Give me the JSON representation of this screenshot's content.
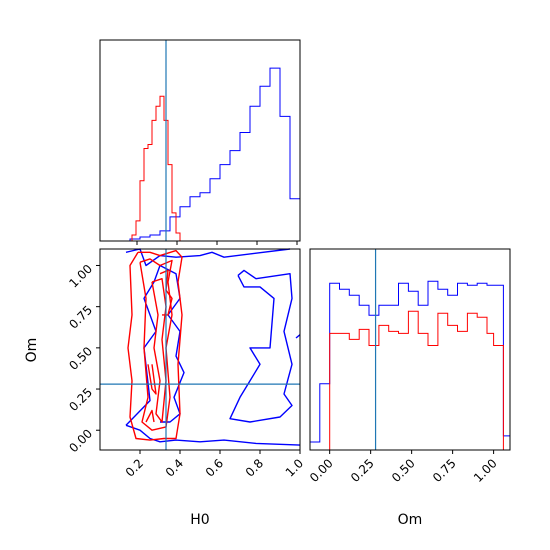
{
  "chart_data": {
    "type": "corner",
    "parameters": [
      "H0",
      "Om"
    ],
    "truth": {
      "H0": 0.33,
      "Om": 0.28
    },
    "truth_color": "#1f77b4",
    "series_colors": {
      "blue": "#0000ff",
      "red": "#ff0000"
    },
    "x_ticks": {
      "H0": [
        "0.2",
        "0.4",
        "0.6",
        "0.8",
        "1.0"
      ],
      "Om": [
        "0.00",
        "0.25",
        "0.50",
        "0.75",
        "1.00"
      ]
    },
    "y_ticks": {
      "Om": [
        "0.00",
        "0.25",
        "0.50",
        "0.75",
        "1.00"
      ]
    },
    "axis_ranges": {
      "H0": [
        0.0,
        1.0
      ],
      "Om": [
        -0.12,
        1.1
      ]
    },
    "x_labels": {
      "H0": "H0",
      "Om": "Om"
    },
    "y_labels": {
      "Om": "Om"
    },
    "hist_H0": {
      "bin_edges": [
        0.15,
        0.2,
        0.25,
        0.3,
        0.35,
        0.4,
        0.45,
        0.5,
        0.55,
        0.6,
        0.65,
        0.7,
        0.75,
        0.8,
        0.85,
        0.9,
        0.95,
        1.0
      ],
      "blue": [
        0.01,
        0.02,
        0.03,
        0.05,
        0.12,
        0.17,
        0.22,
        0.24,
        0.31,
        0.38,
        0.45,
        0.54,
        0.67,
        0.77,
        0.86,
        0.62,
        0.21
      ],
      "red_bin_edges": [
        0.16,
        0.18,
        0.2,
        0.22,
        0.24,
        0.26,
        0.28,
        0.3,
        0.32,
        0.34,
        0.36,
        0.38,
        0.4
      ],
      "red": [
        0.03,
        0.1,
        0.3,
        0.46,
        0.48,
        0.6,
        0.67,
        0.72,
        0.6,
        0.38,
        0.14,
        0.04
      ]
    },
    "hist_Om": {
      "bin_edges": [
        -0.12,
        -0.06,
        0.0,
        0.06,
        0.12,
        0.18,
        0.24,
        0.3,
        0.36,
        0.42,
        0.48,
        0.54,
        0.6,
        0.66,
        0.72,
        0.78,
        0.84,
        0.9,
        0.96,
        1.0,
        1.06,
        1.1
      ],
      "blue": [
        0.04,
        0.33,
        0.83,
        0.8,
        0.77,
        0.72,
        0.67,
        0.72,
        0.72,
        0.83,
        0.79,
        0.72,
        0.84,
        0.8,
        0.77,
        0.83,
        0.82,
        0.83,
        0.82,
        0.82,
        0.07
      ],
      "red": [
        0,
        0,
        0.58,
        0.58,
        0.55,
        0.6,
        0.52,
        0.62,
        0.59,
        0.58,
        0.69,
        0.58,
        0.52,
        0.68,
        0.62,
        0.59,
        0.68,
        0.66,
        0.58,
        0.52,
        0
      ]
    },
    "contours_blue": [
      [
        [
          0.13,
          1.08
        ],
        [
          0.2,
          1.1
        ],
        [
          0.23,
          1.0
        ],
        [
          0.3,
          1.06
        ],
        [
          0.38,
          1.05
        ],
        [
          0.5,
          1.06
        ],
        [
          0.56,
          1.08
        ],
        [
          0.62,
          1.05
        ],
        [
          0.95,
          1.1
        ]
      ],
      [
        [
          0.13,
          0.03
        ],
        [
          0.2,
          0.0
        ],
        [
          0.25,
          -0.05
        ],
        [
          0.3,
          -0.07
        ],
        [
          0.38,
          -0.06
        ],
        [
          0.5,
          -0.07
        ],
        [
          0.62,
          -0.06
        ],
        [
          0.78,
          -0.08
        ],
        [
          1.0,
          -0.09
        ]
      ],
      [
        [
          0.13,
          0.03
        ],
        [
          0.25,
          0.18
        ],
        [
          0.22,
          0.5
        ],
        [
          0.28,
          0.6
        ],
        [
          0.22,
          0.8
        ],
        [
          0.27,
          0.9
        ],
        [
          0.3,
          1.0
        ],
        [
          0.38,
          0.95
        ],
        [
          0.4,
          0.8
        ],
        [
          0.34,
          0.7
        ],
        [
          0.4,
          0.6
        ],
        [
          0.38,
          0.45
        ],
        [
          0.42,
          0.35
        ],
        [
          0.37,
          0.2
        ],
        [
          0.4,
          0.1
        ],
        [
          0.35,
          0.05
        ],
        [
          0.3,
          0.05
        ]
      ],
      [
        [
          0.69,
          0.94
        ],
        [
          0.72,
          0.97
        ],
        [
          0.78,
          0.92
        ],
        [
          0.95,
          0.95
        ],
        [
          0.96,
          0.8
        ],
        [
          0.92,
          0.6
        ],
        [
          0.96,
          0.4
        ],
        [
          0.92,
          0.22
        ],
        [
          0.96,
          0.15
        ],
        [
          0.9,
          0.08
        ],
        [
          0.75,
          0.05
        ],
        [
          0.65,
          0.07
        ],
        [
          0.7,
          0.2
        ],
        [
          0.8,
          0.4
        ],
        [
          0.75,
          0.5
        ],
        [
          0.85,
          0.5
        ],
        [
          0.87,
          0.8
        ],
        [
          0.8,
          0.87
        ],
        [
          0.72,
          0.87
        ],
        [
          0.69,
          0.94
        ]
      ],
      [
        [
          0.98,
          0.56
        ],
        [
          1.0,
          0.58
        ]
      ]
    ],
    "contours_red": [
      [
        [
          0.19,
          1.08
        ],
        [
          0.15,
          1.0
        ],
        [
          0.16,
          0.7
        ],
        [
          0.14,
          0.5
        ],
        [
          0.16,
          0.3
        ],
        [
          0.15,
          0.08
        ],
        [
          0.18,
          -0.05
        ],
        [
          0.25,
          -0.06
        ],
        [
          0.32,
          -0.05
        ],
        [
          0.38,
          -0.05
        ],
        [
          0.4,
          0.1
        ],
        [
          0.39,
          0.4
        ],
        [
          0.41,
          0.7
        ],
        [
          0.39,
          0.9
        ],
        [
          0.41,
          1.05
        ],
        [
          0.38,
          1.09
        ],
        [
          0.3,
          1.06
        ],
        [
          0.25,
          1.08
        ],
        [
          0.19,
          1.08
        ]
      ],
      [
        [
          0.2,
          1.02
        ],
        [
          0.23,
          0.8
        ],
        [
          0.22,
          0.5
        ],
        [
          0.24,
          0.2
        ],
        [
          0.21,
          0.05
        ],
        [
          0.26,
          0.0
        ],
        [
          0.33,
          0.02
        ],
        [
          0.35,
          0.2
        ],
        [
          0.33,
          0.5
        ],
        [
          0.36,
          0.7
        ],
        [
          0.34,
          0.9
        ],
        [
          0.36,
          1.03
        ],
        [
          0.3,
          1.0
        ],
        [
          0.25,
          1.04
        ],
        [
          0.2,
          1.02
        ]
      ],
      [
        [
          0.26,
          0.9
        ],
        [
          0.29,
          0.7
        ],
        [
          0.27,
          0.5
        ],
        [
          0.3,
          0.3
        ],
        [
          0.28,
          0.1
        ],
        [
          0.31,
          0.05
        ],
        [
          0.33,
          0.3
        ],
        [
          0.31,
          0.55
        ],
        [
          0.33,
          0.75
        ],
        [
          0.31,
          0.92
        ],
        [
          0.26,
          0.9
        ]
      ],
      [
        [
          0.3,
          0.95
        ],
        [
          0.34,
          0.97
        ],
        [
          0.33,
          0.85
        ],
        [
          0.36,
          0.8
        ],
        [
          0.34,
          0.7
        ],
        [
          0.31,
          0.7
        ]
      ],
      [
        [
          0.24,
          0.4
        ],
        [
          0.26,
          0.25
        ],
        [
          0.28,
          0.22
        ],
        [
          0.26,
          0.4
        ]
      ],
      [
        [
          0.23,
          0.05
        ],
        [
          0.26,
          0.12
        ],
        [
          0.27,
          0.05
        ]
      ]
    ]
  }
}
